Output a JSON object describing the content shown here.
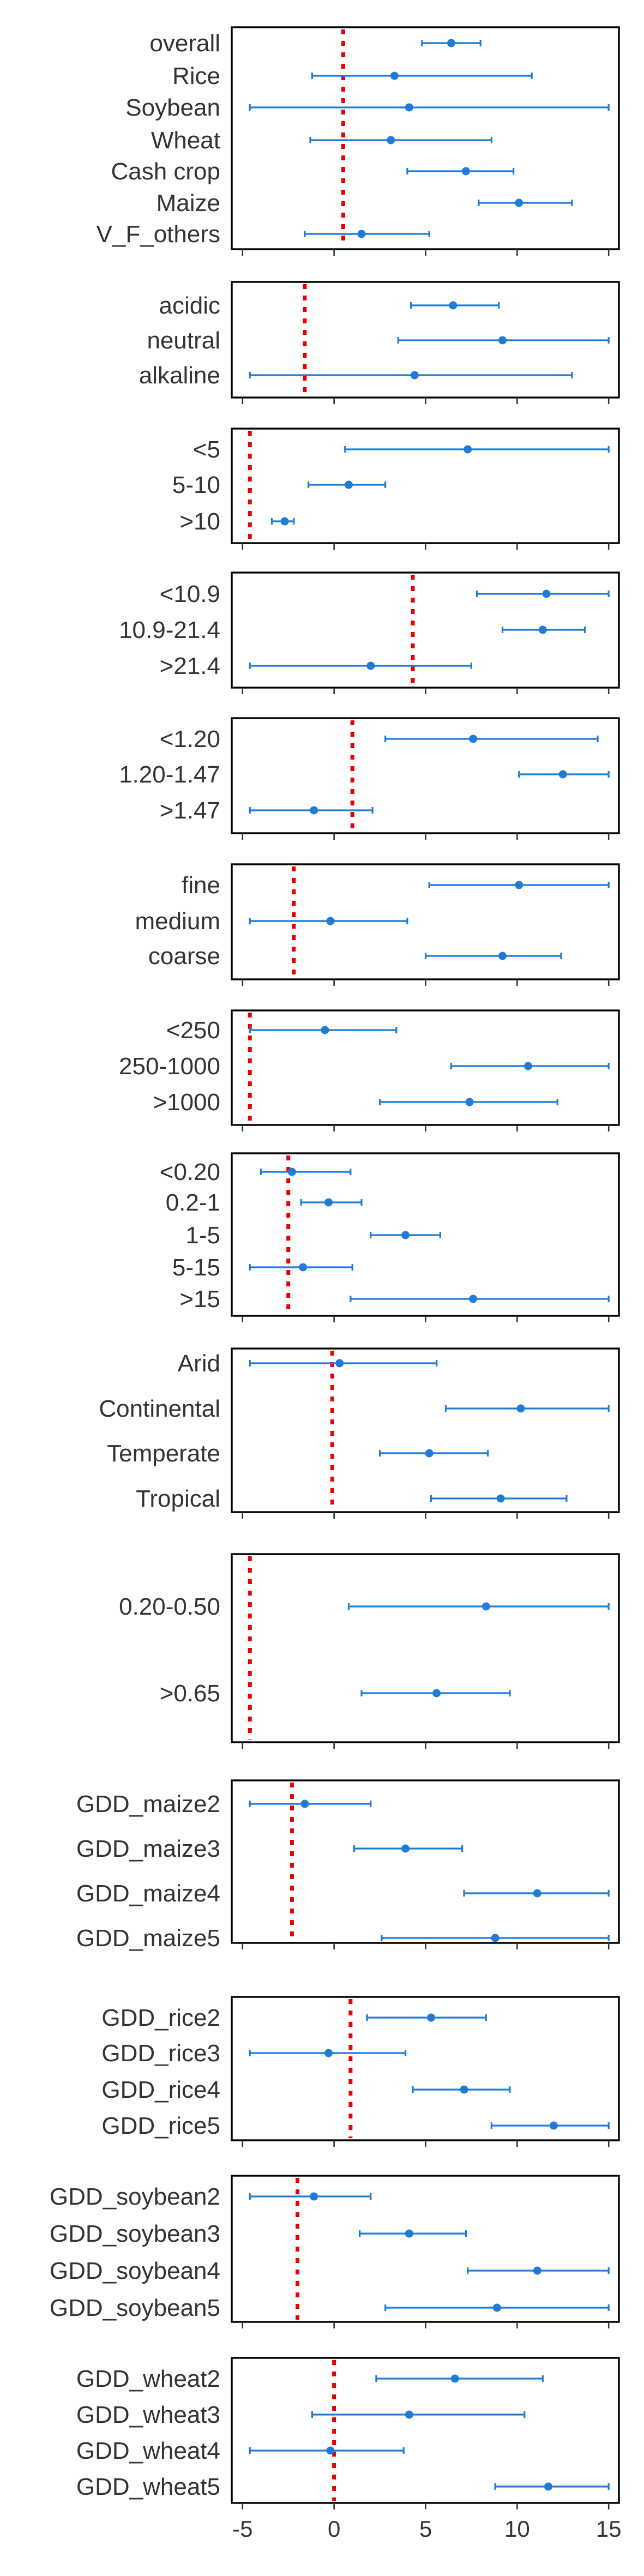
{
  "chart_data": {
    "type": "forest",
    "x_axis": {
      "xlim": [
        -5.5,
        15.5
      ],
      "ticks": [
        -5,
        0,
        5,
        10,
        15
      ],
      "tick_labels": [
        "-5",
        "0",
        "5",
        "10",
        "15"
      ]
    },
    "colors": {
      "estimate": "#1f7bd6",
      "reference": "#e60000",
      "frame": "#000000"
    },
    "panels": [
      {
        "reference": 0.5,
        "rows": [
          {
            "label": "overall",
            "est": 6.4,
            "lo": 4.8,
            "hi": 8.0
          },
          {
            "label": "Rice",
            "est": 3.3,
            "lo": -1.2,
            "hi": 10.8
          },
          {
            "label": "Soybean",
            "est": 4.1,
            "lo": -4.6,
            "hi": 15.0
          },
          {
            "label": "Wheat",
            "est": 3.1,
            "lo": -1.3,
            "hi": 8.6
          },
          {
            "label": "Cash crop",
            "est": 7.2,
            "lo": 4.0,
            "hi": 9.8
          },
          {
            "label": "Maize",
            "est": 10.1,
            "lo": 7.9,
            "hi": 13.0
          },
          {
            "label": "V_F_others",
            "est": 1.5,
            "lo": -1.6,
            "hi": 5.2
          }
        ]
      },
      {
        "reference": -1.6,
        "rows": [
          {
            "label": "acidic",
            "est": 6.5,
            "lo": 4.2,
            "hi": 9.0
          },
          {
            "label": "neutral",
            "est": 9.2,
            "lo": 3.5,
            "hi": 15.0
          },
          {
            "label": "alkaline",
            "est": 4.4,
            "lo": -4.6,
            "hi": 13.0
          }
        ]
      },
      {
        "reference": -4.6,
        "rows": [
          {
            "label": "<5",
            "est": 7.3,
            "lo": 0.6,
            "hi": 15.0
          },
          {
            "label": "5-10",
            "est": 0.8,
            "lo": -1.4,
            "hi": 2.8
          },
          {
            "label": ">10",
            "est": -2.7,
            "lo": -3.4,
            "hi": -2.2
          }
        ]
      },
      {
        "reference": 4.3,
        "rows": [
          {
            "label": "<10.9",
            "est": 11.6,
            "lo": 7.8,
            "hi": 15.0
          },
          {
            "label": "10.9-21.4",
            "est": 11.4,
            "lo": 9.2,
            "hi": 13.7
          },
          {
            "label": ">21.4",
            "est": 2.0,
            "lo": -4.6,
            "hi": 7.5
          }
        ]
      },
      {
        "reference": 1.0,
        "rows": [
          {
            "label": "<1.20",
            "est": 7.6,
            "lo": 2.8,
            "hi": 14.4
          },
          {
            "label": "1.20-1.47",
            "est": 12.5,
            "lo": 10.1,
            "hi": 15.0
          },
          {
            "label": ">1.47",
            "est": -1.1,
            "lo": -4.6,
            "hi": 2.1
          }
        ]
      },
      {
        "reference": -2.2,
        "rows": [
          {
            "label": "fine",
            "est": 10.1,
            "lo": 5.2,
            "hi": 15.0
          },
          {
            "label": "medium",
            "est": -0.2,
            "lo": -4.6,
            "hi": 4.0
          },
          {
            "label": "coarse",
            "est": 9.2,
            "lo": 5.0,
            "hi": 12.4
          }
        ]
      },
      {
        "reference": -4.6,
        "rows": [
          {
            "label": "<250",
            "est": -0.5,
            "lo": -4.6,
            "hi": 3.4
          },
          {
            "label": "250-1000",
            "est": 10.6,
            "lo": 6.4,
            "hi": 15.0
          },
          {
            "label": ">1000",
            "est": 7.4,
            "lo": 2.5,
            "hi": 12.2
          }
        ]
      },
      {
        "reference": -2.5,
        "rows": [
          {
            "label": "<0.20",
            "est": -2.3,
            "lo": -4.0,
            "hi": 0.9
          },
          {
            "label": "0.2-1",
            "est": -0.3,
            "lo": -1.8,
            "hi": 1.5
          },
          {
            "label": "1-5",
            "est": 3.9,
            "lo": 2.0,
            "hi": 5.8
          },
          {
            "label": "5-15",
            "est": -1.7,
            "lo": -4.6,
            "hi": 1.0
          },
          {
            "label": ">15",
            "est": 7.6,
            "lo": 0.9,
            "hi": 15.0
          }
        ]
      },
      {
        "reference": -0.1,
        "rows": [
          {
            "label": "Arid",
            "est": 0.3,
            "lo": -4.6,
            "hi": 5.6
          },
          {
            "label": "Continental",
            "est": 10.2,
            "lo": 6.1,
            "hi": 15.0
          },
          {
            "label": "Temperate",
            "est": 5.2,
            "lo": 2.5,
            "hi": 8.4
          },
          {
            "label": "Tropical",
            "est": 9.1,
            "lo": 5.3,
            "hi": 12.7
          }
        ]
      },
      {
        "reference": -4.6,
        "rows": [
          {
            "label": "0.20-0.50",
            "est": 8.3,
            "lo": 0.8,
            "hi": 15.0
          },
          {
            "label": ">0.65",
            "est": 5.6,
            "lo": 1.5,
            "hi": 9.6
          }
        ]
      },
      {
        "reference": -2.3,
        "rows": [
          {
            "label": "GDD_maize2",
            "est": -1.6,
            "lo": -4.6,
            "hi": 2.0
          },
          {
            "label": "GDD_maize3",
            "est": 3.9,
            "lo": 1.1,
            "hi": 7.0
          },
          {
            "label": "GDD_maize4",
            "est": 11.1,
            "lo": 7.1,
            "hi": 15.0
          },
          {
            "label": "GDD_maize5",
            "est": 8.8,
            "lo": 2.6,
            "hi": 15.0
          }
        ]
      },
      {
        "reference": 0.9,
        "rows": [
          {
            "label": "GDD_rice2",
            "est": 5.3,
            "lo": 1.8,
            "hi": 8.3
          },
          {
            "label": "GDD_rice3",
            "est": -0.3,
            "lo": -4.6,
            "hi": 3.9
          },
          {
            "label": "GDD_rice4",
            "est": 7.1,
            "lo": 4.3,
            "hi": 9.6
          },
          {
            "label": "GDD_rice5",
            "est": 12.0,
            "lo": 8.6,
            "hi": 15.0
          }
        ]
      },
      {
        "reference": -2.0,
        "rows": [
          {
            "label": "GDD_soybean2",
            "est": -1.1,
            "lo": -4.6,
            "hi": 2.0
          },
          {
            "label": "GDD_soybean3",
            "est": 4.1,
            "lo": 1.4,
            "hi": 7.2
          },
          {
            "label": "GDD_soybean4",
            "est": 11.1,
            "lo": 7.3,
            "hi": 15.0
          },
          {
            "label": "GDD_soybean5",
            "est": 8.9,
            "lo": 2.8,
            "hi": 15.0
          }
        ]
      },
      {
        "reference": 0.0,
        "rows": [
          {
            "label": "GDD_wheat2",
            "est": 6.6,
            "lo": 2.3,
            "hi": 11.4
          },
          {
            "label": "GDD_wheat3",
            "est": 4.1,
            "lo": -1.2,
            "hi": 10.4
          },
          {
            "label": "GDD_wheat4",
            "est": -0.2,
            "lo": -4.6,
            "hi": 3.8
          },
          {
            "label": "GDD_wheat5",
            "est": 11.7,
            "lo": 8.8,
            "hi": 15.0
          }
        ]
      }
    ]
  }
}
